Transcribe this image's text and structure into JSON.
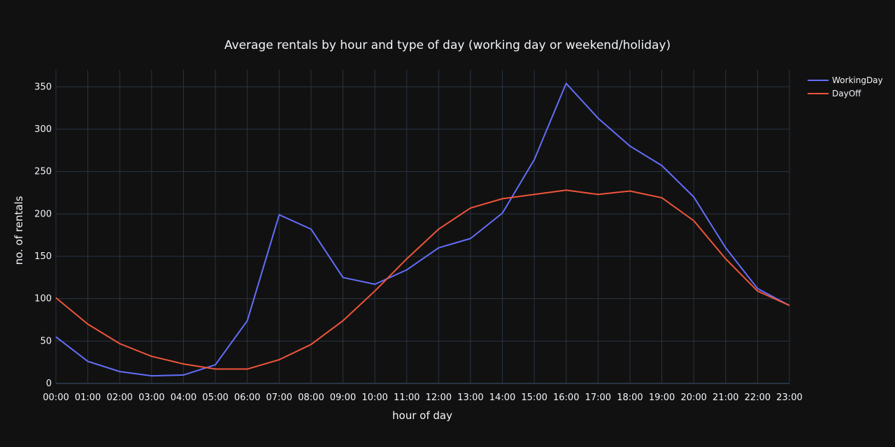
{
  "chart_data": {
    "type": "line",
    "title": "Average rentals by hour and type of day (working day or weekend/holiday)",
    "xlabel": "hour of day",
    "ylabel": "no. of rentals",
    "ylim": [
      0,
      370
    ],
    "yticks": [
      0,
      50,
      100,
      150,
      200,
      250,
      300,
      350
    ],
    "grid": true,
    "legend_position": "top-right",
    "x": [
      "00:00",
      "01:00",
      "02:00",
      "03:00",
      "04:00",
      "05:00",
      "06:00",
      "07:00",
      "08:00",
      "09:00",
      "10:00",
      "11:00",
      "12:00",
      "13:00",
      "14:00",
      "15:00",
      "16:00",
      "17:00",
      "18:00",
      "19:00",
      "20:00",
      "21:00",
      "22:00",
      "23:00"
    ],
    "series": [
      {
        "name": "WorkingDay",
        "color": "#636efa",
        "values": [
          55,
          26,
          14,
          9,
          10,
          22,
          74,
          199,
          182,
          125,
          117,
          134,
          160,
          171,
          201,
          264,
          354,
          313,
          280,
          257,
          220,
          160,
          112,
          92
        ]
      },
      {
        "name": "DayOff",
        "color": "#ef553b",
        "values": [
          101,
          70,
          47,
          32,
          23,
          17,
          17,
          28,
          46,
          74,
          109,
          147,
          182,
          207,
          218,
          223,
          228,
          223,
          227,
          219,
          192,
          147,
          109,
          92
        ]
      }
    ]
  },
  "colors": {
    "background": "#111111",
    "grid": "#283442",
    "text": "#f2f5fa"
  }
}
